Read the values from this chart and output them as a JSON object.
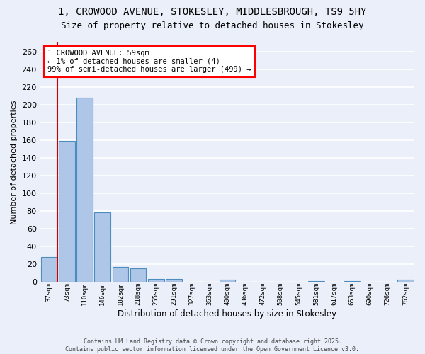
{
  "title1": "1, CROWOOD AVENUE, STOKESLEY, MIDDLESBROUGH, TS9 5HY",
  "title2": "Size of property relative to detached houses in Stokesley",
  "xlabel": "Distribution of detached houses by size in Stokesley",
  "ylabel": "Number of detached properties",
  "categories": [
    "37sqm",
    "73sqm",
    "110sqm",
    "146sqm",
    "182sqm",
    "218sqm",
    "255sqm",
    "291sqm",
    "327sqm",
    "363sqm",
    "400sqm",
    "436sqm",
    "472sqm",
    "508sqm",
    "545sqm",
    "581sqm",
    "617sqm",
    "653sqm",
    "690sqm",
    "726sqm",
    "762sqm"
  ],
  "bar_heights": [
    28,
    159,
    208,
    78,
    17,
    15,
    3,
    3,
    0,
    0,
    2,
    0,
    0,
    0,
    0,
    1,
    0,
    1,
    0,
    0,
    2
  ],
  "bar_color": "#aec6e8",
  "bar_edge_color": "#4c8cbf",
  "bar_edge_width": 0.8,
  "red_line_color": "#cc0000",
  "annotation_text": "1 CROWOOD AVENUE: 59sqm\n← 1% of detached houses are smaller (4)\n99% of semi-detached houses are larger (499) →",
  "ylim": [
    0,
    270
  ],
  "yticks": [
    0,
    20,
    40,
    60,
    80,
    100,
    120,
    140,
    160,
    180,
    200,
    220,
    240,
    260
  ],
  "bg_color": "#eaeff9",
  "grid_color": "#ffffff",
  "footer_text": "Contains HM Land Registry data © Crown copyright and database right 2025.\nContains public sector information licensed under the Open Government Licence v3.0.",
  "title_fontsize": 10,
  "subtitle_fontsize": 9,
  "bar_width": 0.9
}
